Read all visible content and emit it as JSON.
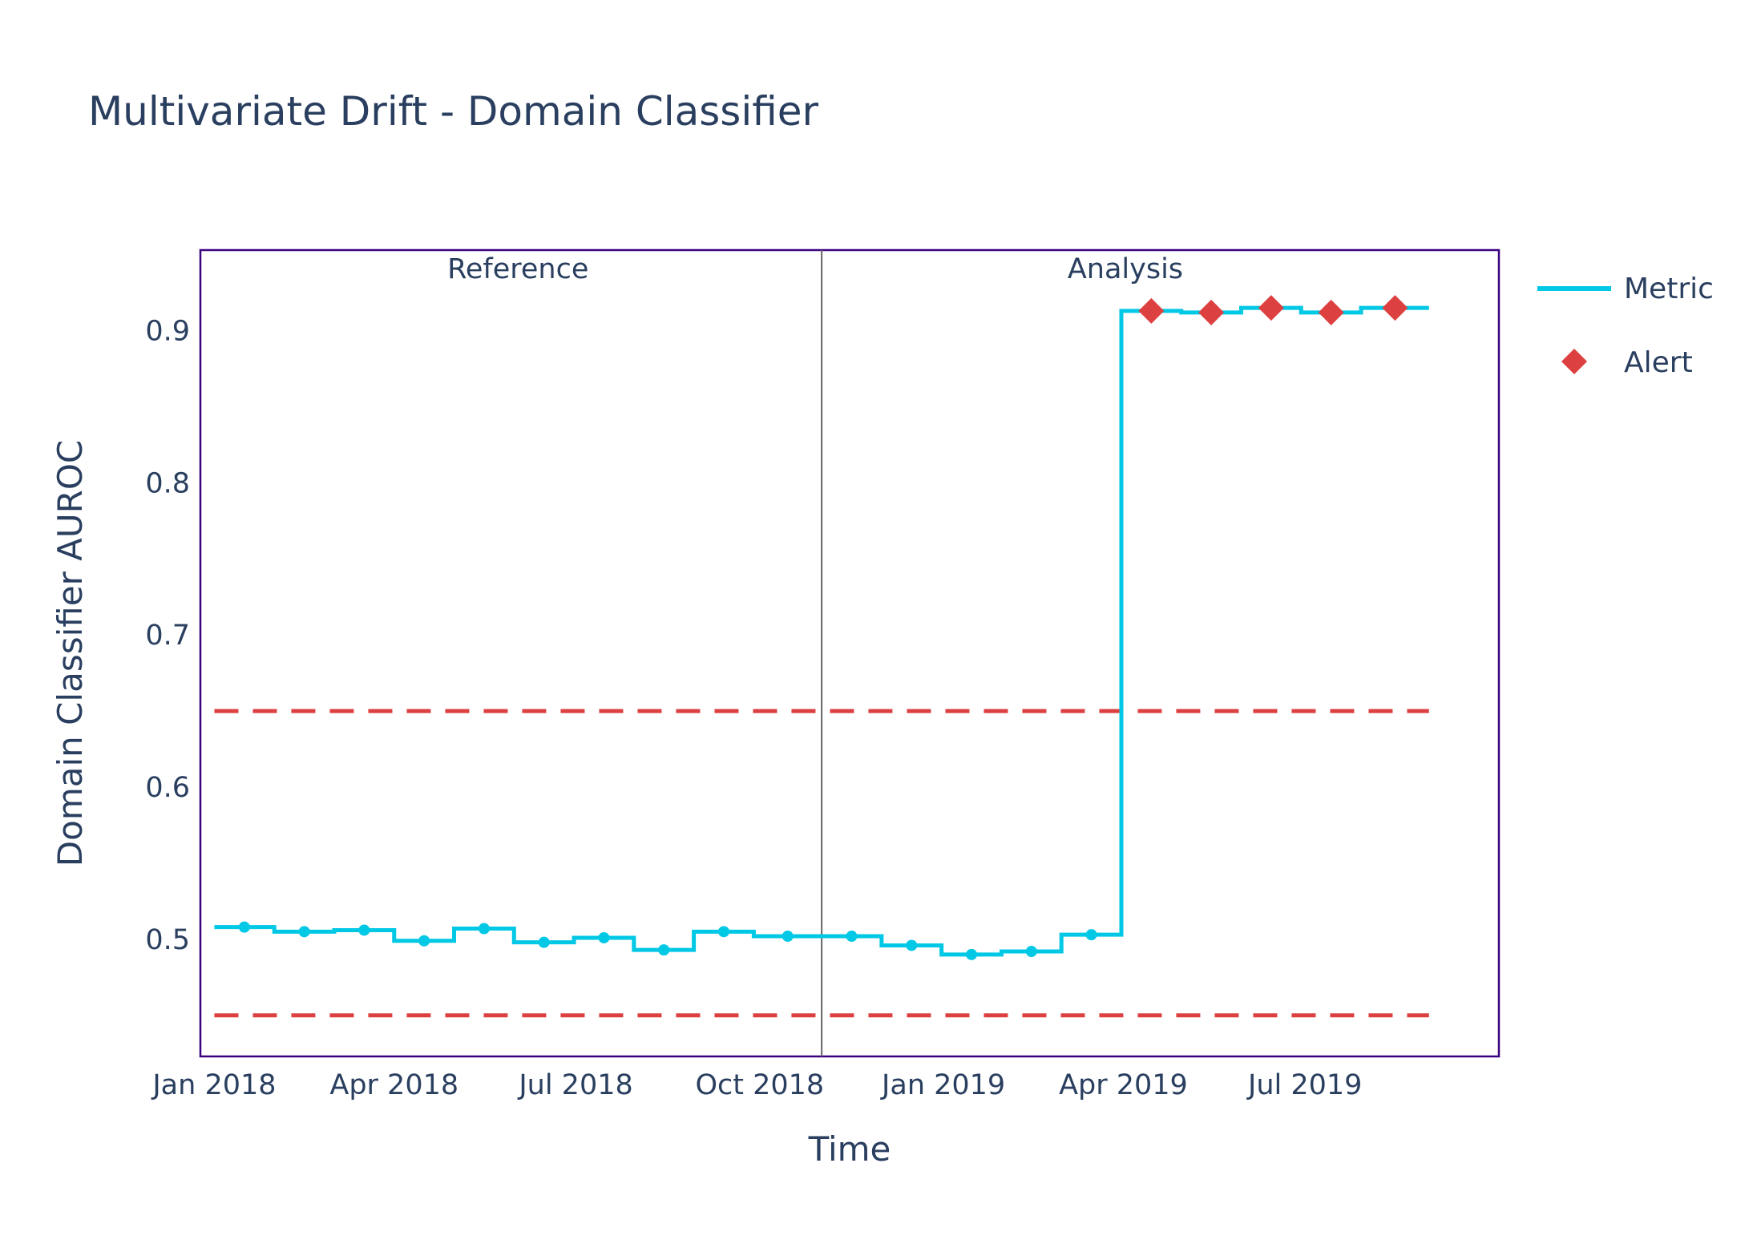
{
  "chart_data": {
    "type": "line",
    "title": "Multivariate Drift - Domain Classifier",
    "xlabel": "Time",
    "ylabel": "Domain Classifier AUROC",
    "x_ticks": [
      "2018-01-01",
      "2018-04-01",
      "2018-07-01",
      "2018-10-01",
      "2019-01-01",
      "2019-04-01",
      "2019-07-01"
    ],
    "x_tick_labels": [
      "Jan 2018",
      "Apr 2018",
      "Jul 2018",
      "Oct 2018",
      "Jan 2019",
      "Apr 2019",
      "Jul 2019"
    ],
    "y_ticks": [
      0.5,
      0.6,
      0.7,
      0.8,
      0.9
    ],
    "y_tick_labels": [
      "0.5",
      "0.6",
      "0.7",
      "0.8",
      "0.9"
    ],
    "xlim": [
      "2017-12-25",
      "2019-10-06"
    ],
    "ylim": [
      0.423,
      0.953
    ],
    "grid": false,
    "legend_position": "top-right",
    "periods": [
      {
        "label": "Reference",
        "start": "2018-01-01",
        "end": "2018-11-01"
      },
      {
        "label": "Analysis",
        "start": "2018-11-01",
        "end": "2019-09-01"
      }
    ],
    "chunks": [
      {
        "start": "2018-01-01",
        "end": "2018-01-31",
        "value": 0.508,
        "alert": false
      },
      {
        "start": "2018-01-31",
        "end": "2018-03-02",
        "value": 0.505,
        "alert": false
      },
      {
        "start": "2018-03-02",
        "end": "2018-04-01",
        "value": 0.506,
        "alert": false
      },
      {
        "start": "2018-04-01",
        "end": "2018-05-01",
        "value": 0.499,
        "alert": false
      },
      {
        "start": "2018-05-01",
        "end": "2018-05-31",
        "value": 0.507,
        "alert": false
      },
      {
        "start": "2018-05-31",
        "end": "2018-06-30",
        "value": 0.498,
        "alert": false
      },
      {
        "start": "2018-06-30",
        "end": "2018-07-30",
        "value": 0.501,
        "alert": false
      },
      {
        "start": "2018-07-30",
        "end": "2018-08-29",
        "value": 0.493,
        "alert": false
      },
      {
        "start": "2018-08-29",
        "end": "2018-09-28",
        "value": 0.505,
        "alert": false
      },
      {
        "start": "2018-09-28",
        "end": "2018-11-01",
        "value": 0.502,
        "alert": false
      },
      {
        "start": "2018-11-01",
        "end": "2018-12-01",
        "value": 0.502,
        "alert": false
      },
      {
        "start": "2018-12-01",
        "end": "2018-12-31",
        "value": 0.496,
        "alert": false
      },
      {
        "start": "2018-12-31",
        "end": "2019-01-30",
        "value": 0.49,
        "alert": false
      },
      {
        "start": "2019-01-30",
        "end": "2019-03-01",
        "value": 0.492,
        "alert": false
      },
      {
        "start": "2019-03-01",
        "end": "2019-03-31",
        "value": 0.503,
        "alert": false
      },
      {
        "start": "2019-03-31",
        "end": "2019-04-30",
        "value": 0.913,
        "alert": true
      },
      {
        "start": "2019-04-30",
        "end": "2019-05-30",
        "value": 0.912,
        "alert": true
      },
      {
        "start": "2019-05-30",
        "end": "2019-06-29",
        "value": 0.915,
        "alert": true
      },
      {
        "start": "2019-06-29",
        "end": "2019-07-29",
        "value": 0.912,
        "alert": true
      },
      {
        "start": "2019-07-29",
        "end": "2019-09-01",
        "value": 0.915,
        "alert": true
      }
    ],
    "thresholds": {
      "upper": 0.65,
      "lower": 0.45
    },
    "series": [
      {
        "name": "Metric",
        "color": "#00c8e5"
      },
      {
        "name": "Alert",
        "color": "#dd4040"
      }
    ],
    "colors": {
      "metric": "#00c8e5",
      "alert": "#dd4040",
      "threshold": "#dd4040",
      "plot_border": "#3b0280",
      "divider": "#666666"
    }
  }
}
